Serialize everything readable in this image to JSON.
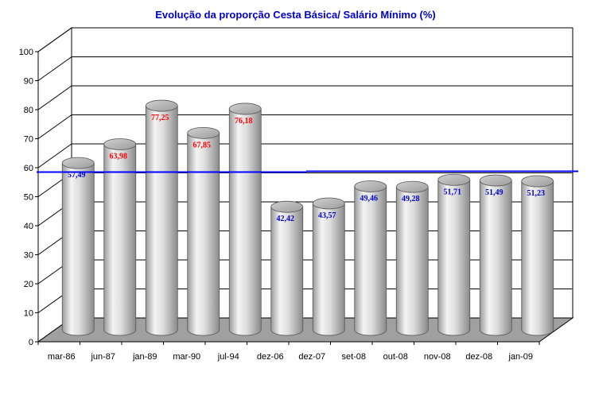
{
  "chart_data": {
    "type": "bar",
    "title": "Evolução da proporção Cesta Básica/ Salário Mínimo (%)",
    "xlabel": "",
    "ylabel": "",
    "ylim": [
      0,
      100
    ],
    "yticks": [
      "0",
      "10",
      "20",
      "30",
      "40",
      "50",
      "60",
      "70",
      "80",
      "90",
      "100"
    ],
    "categories": [
      "mar-86",
      "jun-87",
      "jan-89",
      "mar-90",
      "jul-94",
      "dez-06",
      "dez-07",
      "set-08",
      "out-08",
      "nov-08",
      "dez-08",
      "jan-09"
    ],
    "values": [
      57.49,
      63.98,
      77.25,
      67.85,
      76.18,
      42.42,
      43.57,
      49.46,
      49.28,
      51.71,
      51.49,
      51.23
    ],
    "data_labels": [
      "57,49",
      "63,98",
      "77,25",
      "67,85",
      "76,18",
      "42,42",
      "43,57",
      "49,46",
      "49,28",
      "51,71",
      "51,49",
      "51,23"
    ],
    "label_colors": [
      "#0000cc",
      "#ff0000",
      "#ff0000",
      "#ff0000",
      "#ff0000",
      "#0000cc",
      "#0000cc",
      "#0000cc",
      "#0000cc",
      "#0000cc",
      "#0000cc",
      "#0000cc"
    ],
    "reference_line": {
      "value": 58.5,
      "color": "#0000ff"
    },
    "grid": true,
    "bar_style": "3d-cylinder",
    "colors": {
      "title": "#0000cc",
      "bar": "#d8d8d8",
      "floor": "#a0a0a0",
      "grid": "#000000"
    }
  }
}
